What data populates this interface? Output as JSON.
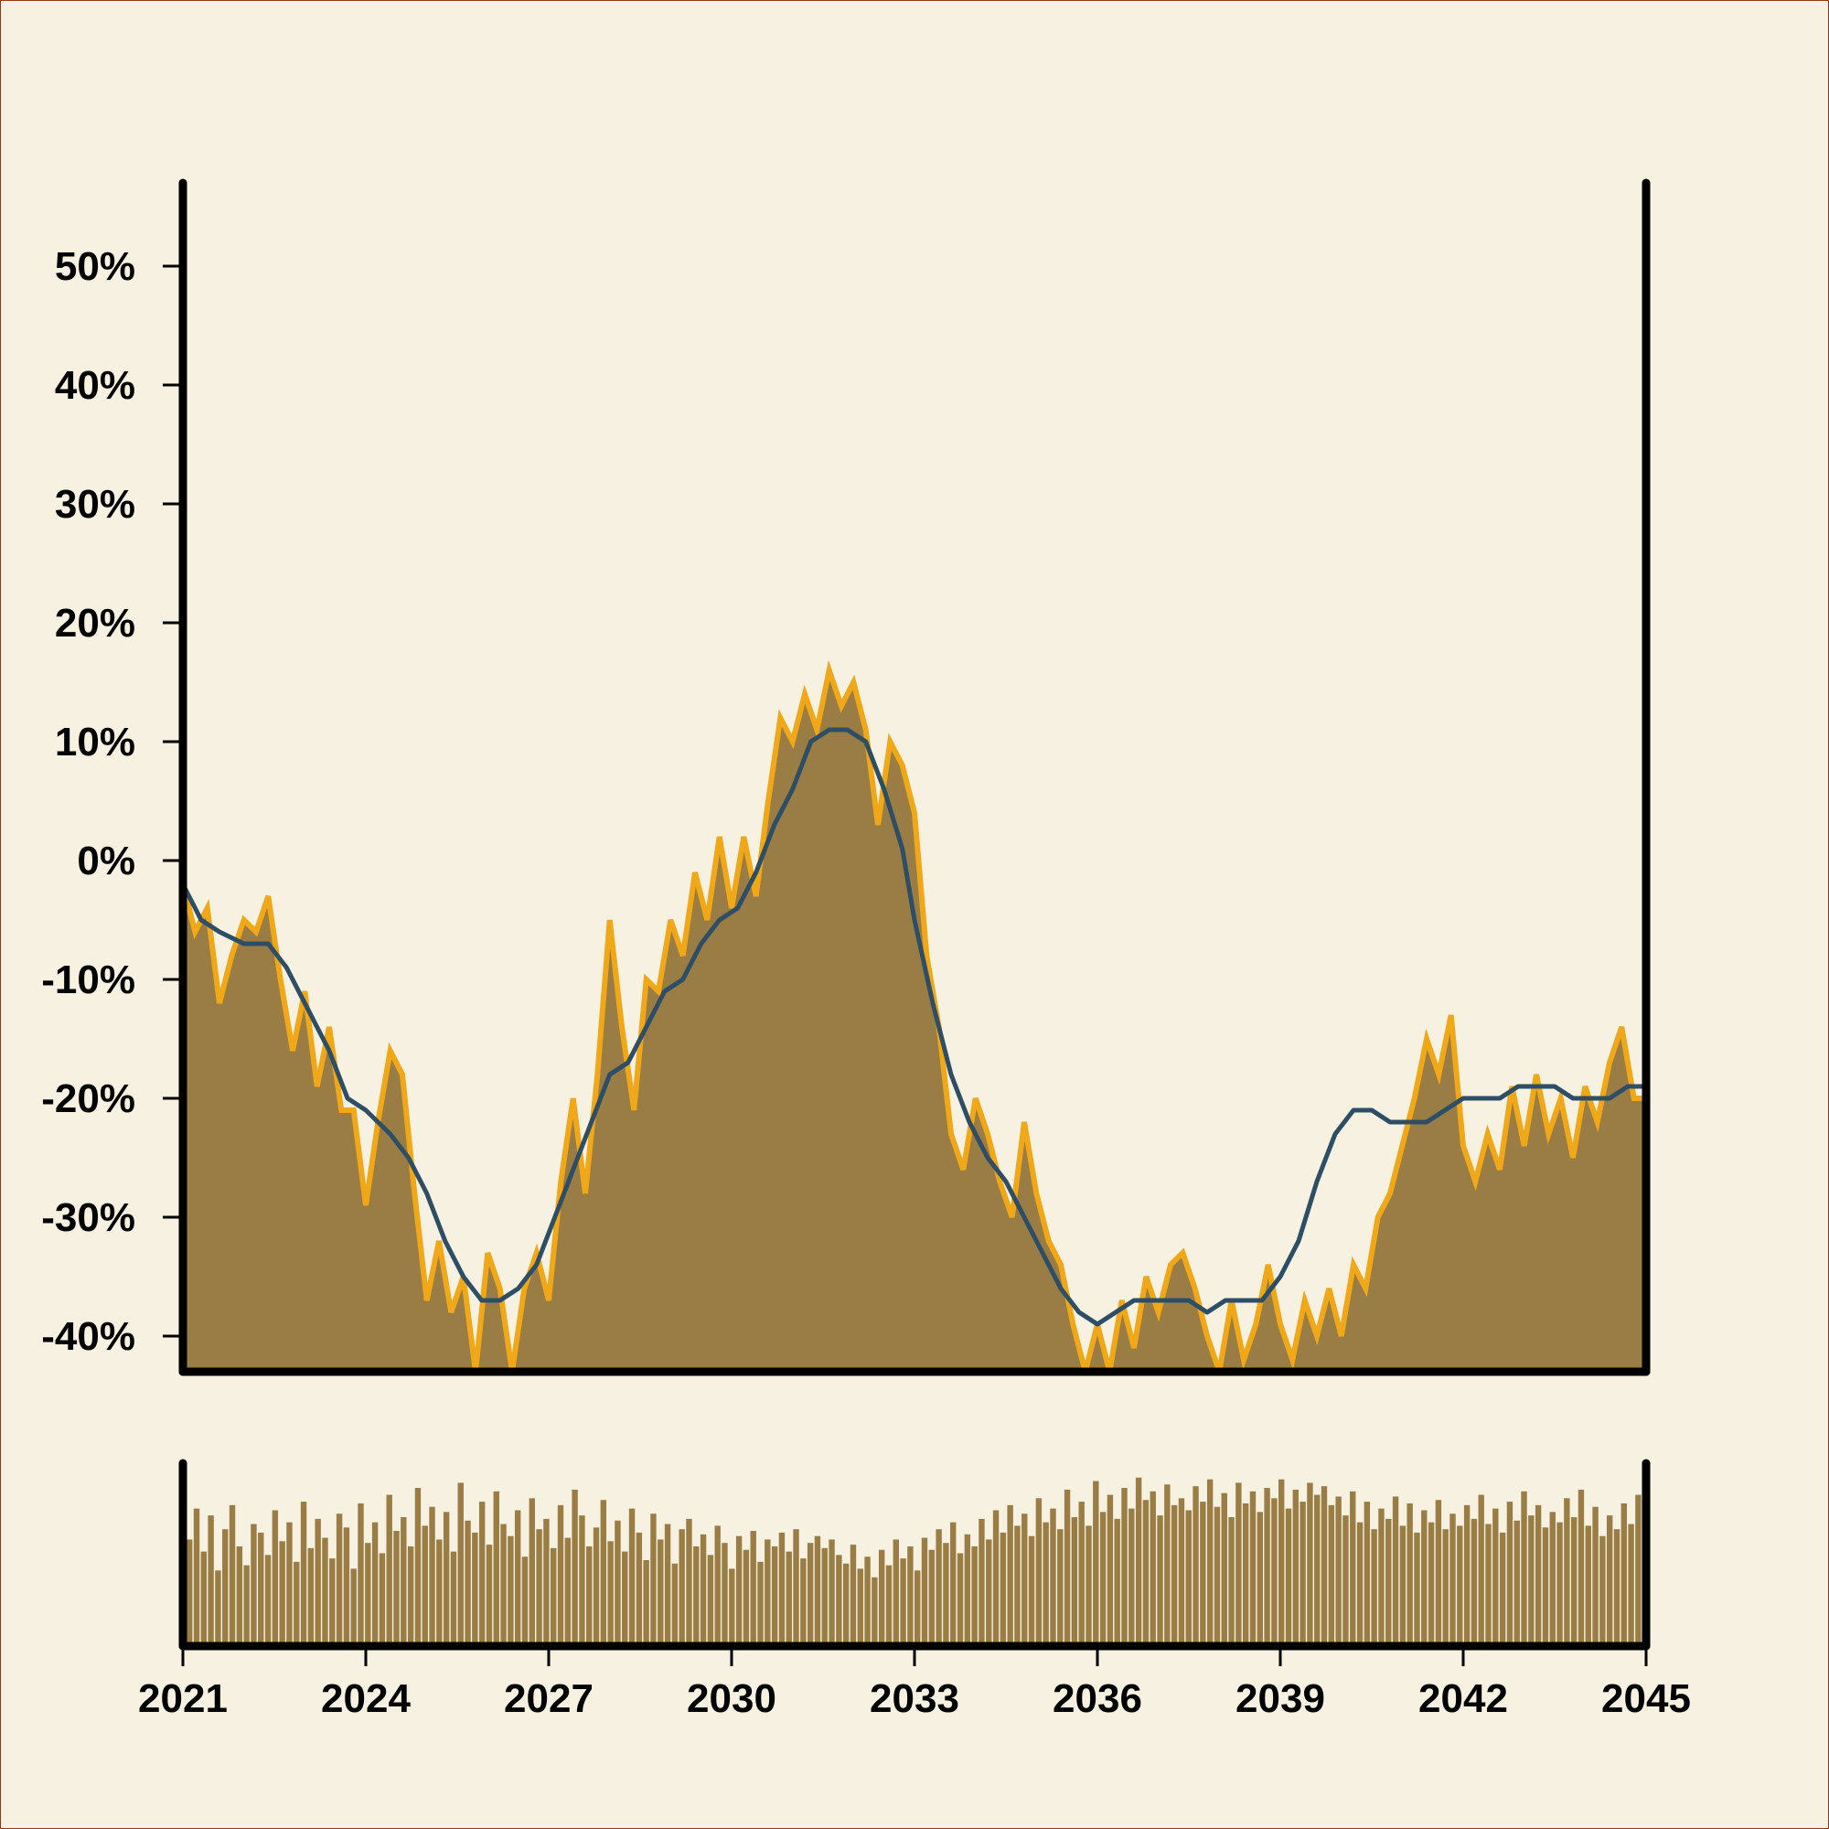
{
  "chart_data": {
    "type": "area",
    "title": "",
    "xlabel": "",
    "ylabel": "",
    "xlim": [
      2021,
      2045
    ],
    "ylim": [
      -43,
      57
    ],
    "x_ticks": [
      2021,
      2024,
      2027,
      2030,
      2033,
      2036,
      2039,
      2042,
      2045
    ],
    "x_tick_labels": [
      "2021",
      "2024",
      "2027",
      "2030",
      "2033",
      "2036",
      "2039",
      "2042",
      "2045"
    ],
    "y_ticks": [
      50,
      40,
      30,
      20,
      10,
      0,
      -10,
      -20,
      -30,
      -40
    ],
    "y_tick_labels": [
      "50%",
      "40%",
      "30%",
      "20%",
      "10%",
      "0%",
      "-10%",
      "-20%",
      "-30%",
      "-40%"
    ],
    "grid": false,
    "legend": "none",
    "colors": {
      "background": "#f6f1e1",
      "area_fill": "#9a7d45",
      "area_edge": "#f0a818",
      "moving_average": "#2e4e66",
      "volume_bars": "#9a7d45",
      "axes": "#000000"
    },
    "series": [
      {
        "type": "area",
        "x": [
          2021.0,
          2021.2,
          2021.4,
          2021.6,
          2021.8,
          2022.0,
          2022.2,
          2022.4,
          2022.6,
          2022.8,
          2023.0,
          2023.2,
          2023.4,
          2023.6,
          2023.8,
          2024.0,
          2024.2,
          2024.4,
          2024.6,
          2024.8,
          2025.0,
          2025.2,
          2025.4,
          2025.6,
          2025.8,
          2026.0,
          2026.2,
          2026.4,
          2026.6,
          2026.8,
          2027.0,
          2027.2,
          2027.4,
          2027.6,
          2027.8,
          2028.0,
          2028.2,
          2028.4,
          2028.6,
          2028.8,
          2029.0,
          2029.2,
          2029.4,
          2029.6,
          2029.8,
          2030.0,
          2030.2,
          2030.4,
          2030.6,
          2030.8,
          2031.0,
          2031.2,
          2031.4,
          2031.6,
          2031.8,
          2032.0,
          2032.2,
          2032.4,
          2032.6,
          2032.8,
          2033.0,
          2033.2,
          2033.4,
          2033.6,
          2033.8,
          2034.0,
          2034.2,
          2034.4,
          2034.6,
          2034.8,
          2035.0,
          2035.2,
          2035.4,
          2035.6,
          2035.8,
          2036.0,
          2036.2,
          2036.4,
          2036.6,
          2036.8,
          2037.0,
          2037.2,
          2037.4,
          2037.6,
          2037.8,
          2038.0,
          2038.2,
          2038.4,
          2038.6,
          2038.8,
          2039.0,
          2039.2,
          2039.4,
          2039.6,
          2039.8,
          2040.0,
          2040.2,
          2040.4,
          2040.6,
          2040.8,
          2041.0,
          2041.2,
          2041.4,
          2041.6,
          2041.8,
          2042.0,
          2042.2,
          2042.4,
          2042.6,
          2042.8,
          2043.0,
          2043.2,
          2043.4,
          2043.6,
          2043.8,
          2044.0,
          2044.2,
          2044.4,
          2044.6,
          2044.8,
          2045.0
        ],
        "values": [
          -2,
          -6,
          -4,
          -12,
          -8,
          -5,
          -6,
          -3,
          -10,
          -16,
          -11,
          -19,
          -14,
          -21,
          -21,
          -29,
          -22,
          -16,
          -18,
          -28,
          -37,
          -32,
          -38,
          -35,
          -43,
          -33,
          -36,
          -43,
          -36,
          -33,
          -37,
          -27,
          -20,
          -28,
          -18,
          -5,
          -14,
          -21,
          -10,
          -11,
          -5,
          -8,
          -1,
          -5,
          2,
          -4,
          2,
          -3,
          5,
          12,
          10,
          14,
          11,
          16,
          13,
          15,
          11,
          3,
          10,
          8,
          4,
          -8,
          -14,
          -23,
          -26,
          -20,
          -23,
          -27,
          -30,
          -22,
          -28,
          -32,
          -34,
          -39,
          -43,
          -39,
          -43,
          -37,
          -41,
          -35,
          -38,
          -34,
          -33,
          -36,
          -40,
          -43,
          -37,
          -42,
          -39,
          -34,
          -39,
          -42,
          -37,
          -40,
          -36,
          -40,
          -34,
          -36,
          -30,
          -28,
          -24,
          -20,
          -15,
          -18,
          -13,
          -24,
          -27,
          -23,
          -26,
          -19,
          -24,
          -18,
          -23,
          -20,
          -25,
          -19,
          -22,
          -17,
          -14,
          -20,
          -20
        ]
      },
      {
        "type": "line",
        "x": [
          2021.0,
          2021.3,
          2021.6,
          2022.0,
          2022.4,
          2022.7,
          2023.0,
          2023.4,
          2023.7,
          2024.0,
          2024.4,
          2024.7,
          2025.0,
          2025.3,
          2025.6,
          2025.9,
          2026.2,
          2026.5,
          2026.8,
          2027.1,
          2027.4,
          2027.7,
          2028.0,
          2028.3,
          2028.6,
          2028.9,
          2029.2,
          2029.5,
          2029.8,
          2030.1,
          2030.4,
          2030.7,
          2031.0,
          2031.3,
          2031.6,
          2031.9,
          2032.2,
          2032.5,
          2032.8,
          2033.0,
          2033.3,
          2033.6,
          2033.9,
          2034.2,
          2034.5,
          2034.8,
          2035.1,
          2035.4,
          2035.7,
          2036.0,
          2036.3,
          2036.6,
          2036.9,
          2037.2,
          2037.5,
          2037.8,
          2038.1,
          2038.4,
          2038.7,
          2039.0,
          2039.3,
          2039.6,
          2039.9,
          2040.2,
          2040.5,
          2040.8,
          2041.1,
          2041.4,
          2041.7,
          2042.0,
          2042.3,
          2042.6,
          2042.9,
          2043.2,
          2043.5,
          2043.8,
          2044.1,
          2044.4,
          2044.7,
          2045.0
        ],
        "values": [
          -2,
          -5,
          -6,
          -7,
          -7,
          -9,
          -12,
          -16,
          -20,
          -21,
          -23,
          -25,
          -28,
          -32,
          -35,
          -37,
          -37,
          -36,
          -34,
          -30,
          -26,
          -22,
          -18,
          -17,
          -14,
          -11,
          -10,
          -7,
          -5,
          -4,
          -1,
          3,
          6,
          10,
          11,
          11,
          10,
          6,
          1,
          -5,
          -12,
          -18,
          -22,
          -25,
          -27,
          -30,
          -33,
          -36,
          -38,
          -39,
          -38,
          -37,
          -37,
          -37,
          -37,
          -38,
          -37,
          -37,
          -37,
          -35,
          -32,
          -27,
          -23,
          -21,
          -21,
          -22,
          -22,
          -22,
          -21,
          -20,
          -20,
          -20,
          -19,
          -19,
          -19,
          -20,
          -20,
          -20,
          -19,
          -19
        ]
      }
    ],
    "volume": [
      62,
      80,
      55,
      76,
      44,
      68,
      82,
      58,
      47,
      71,
      66,
      53,
      79,
      61,
      72,
      49,
      84,
      57,
      74,
      63,
      51,
      77,
      69,
      45,
      83,
      60,
      72,
      54,
      88,
      67,
      75,
      58,
      92,
      70,
      81,
      62,
      78,
      55,
      95,
      73,
      66,
      84,
      59,
      90,
      71,
      64,
      79,
      52,
      86,
      68,
      74,
      57,
      82,
      63,
      91,
      76,
      58,
      69,
      85,
      61,
      73,
      55,
      80,
      66,
      50,
      77,
      62,
      71,
      48,
      68,
      74,
      58,
      65,
      53,
      70,
      60,
      45,
      64,
      56,
      67,
      49,
      62,
      58,
      66,
      55,
      68,
      51,
      60,
      64,
      57,
      62,
      53,
      48,
      59,
      45,
      52,
      40,
      56,
      47,
      62,
      51,
      58,
      44,
      63,
      56,
      68,
      60,
      72,
      54,
      65,
      58,
      74,
      62,
      79,
      66,
      82,
      70,
      77,
      64,
      86,
      72,
      80,
      68,
      91,
      75,
      84,
      70,
      96,
      78,
      88,
      74,
      92,
      80,
      98,
      85,
      90,
      76,
      94,
      82,
      86,
      79,
      93,
      84,
      97,
      81,
      89,
      75,
      95,
      83,
      90,
      78,
      92,
      86,
      97,
      80,
      91,
      84,
      95,
      88,
      93,
      82,
      87,
      76,
      90,
      72,
      84,
      68,
      80,
      74,
      87,
      70,
      83,
      66,
      79,
      72,
      85,
      68,
      77,
      70,
      82,
      74,
      88,
      71,
      80,
      66,
      84,
      73,
      90,
      76,
      82,
      69,
      78,
      72,
      86,
      75,
      91,
      70,
      81,
      64,
      76,
      68,
      83,
      71,
      88
    ]
  }
}
